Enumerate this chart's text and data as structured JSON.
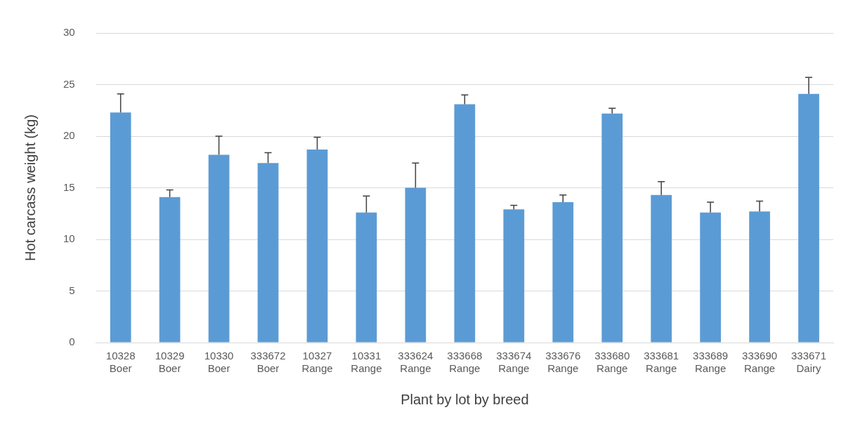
{
  "chart_data": {
    "type": "bar",
    "xlabel": "Plant by lot by breed",
    "ylabel": "Hot carcass weight (kg)",
    "categories": [
      "10328\nBoer",
      "10329\nBoer",
      "10330\nBoer",
      "333672\nBoer",
      "10327\nRange",
      "10331\nRange",
      "333624\nRange",
      "333668\nRange",
      "333674\nRange",
      "333676\nRange",
      "333680\nRange",
      "333681\nRange",
      "333689\nRange",
      "333690\nRange",
      "333671\nDairy"
    ],
    "values": [
      22.3,
      14.1,
      18.2,
      17.4,
      18.7,
      12.6,
      15.0,
      23.1,
      12.9,
      13.6,
      22.2,
      14.3,
      12.6,
      12.7,
      24.1
    ],
    "errors": [
      [
        22.3,
        24.1
      ],
      [
        14.1,
        14.8
      ],
      [
        18.2,
        20.0
      ],
      [
        17.4,
        18.4
      ],
      [
        18.7,
        19.9
      ],
      [
        12.6,
        14.2
      ],
      [
        15.0,
        17.4
      ],
      [
        23.1,
        24.0
      ],
      [
        12.9,
        13.3
      ],
      [
        13.6,
        14.3
      ],
      [
        22.2,
        22.7
      ],
      [
        14.3,
        15.6
      ],
      [
        12.6,
        13.6
      ],
      [
        12.7,
        13.7
      ],
      [
        24.1,
        25.7
      ]
    ],
    "color": "#5b9bd5",
    "ylim": [
      0,
      30
    ],
    "yticks": [
      0,
      5,
      10,
      15,
      20,
      25,
      30
    ],
    "grid": "y",
    "legend": false
  }
}
